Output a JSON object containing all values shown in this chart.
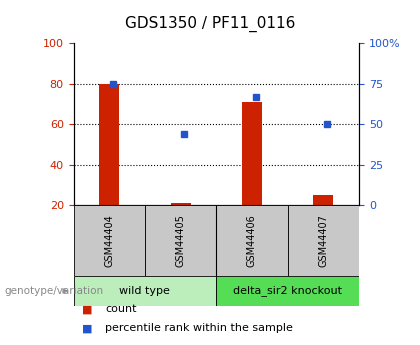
{
  "title": "GDS1350 / PF11_0116",
  "samples": [
    "GSM44404",
    "GSM44405",
    "GSM44406",
    "GSM44407"
  ],
  "count_values": [
    80,
    21,
    71,
    25
  ],
  "count_base": 20,
  "percentile_values": [
    75,
    44,
    67,
    50
  ],
  "left_ylim": [
    20,
    100
  ],
  "right_ylim": [
    0,
    100
  ],
  "left_yticks": [
    20,
    40,
    60,
    80,
    100
  ],
  "right_yticks": [
    0,
    25,
    50,
    75,
    100
  ],
  "right_yticklabels": [
    "0",
    "25",
    "50",
    "75",
    "100%"
  ],
  "bar_color": "#cc2200",
  "dot_color": "#2255cc",
  "groups": [
    {
      "label": "wild type",
      "indices": [
        0,
        1
      ],
      "color": "#bbeebb"
    },
    {
      "label": "delta_sir2 knockout",
      "indices": [
        2,
        3
      ],
      "color": "#55dd55"
    }
  ],
  "legend_items": [
    {
      "label": "count",
      "color": "#cc2200"
    },
    {
      "label": "percentile rank within the sample",
      "color": "#2255cc"
    }
  ],
  "genotype_label": "genotype/variation",
  "sample_box_color": "#c8c8c8",
  "title_fontsize": 11,
  "tick_fontsize": 8,
  "label_fontsize": 7,
  "group_fontsize": 8,
  "legend_fontsize": 8
}
